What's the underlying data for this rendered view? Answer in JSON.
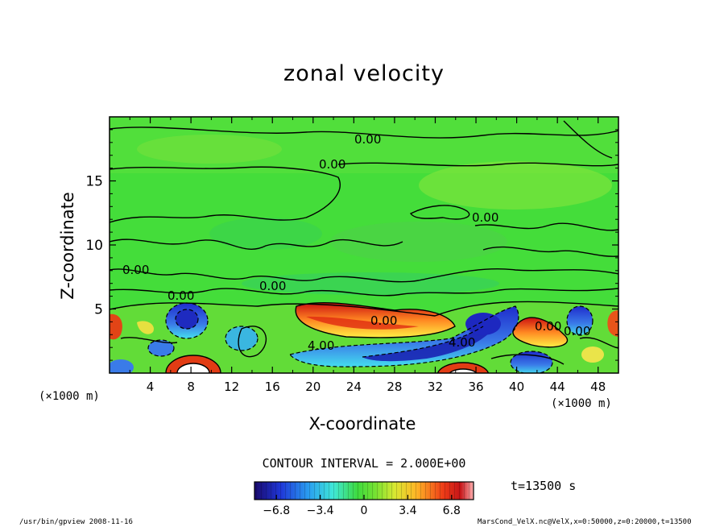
{
  "chart_data": {
    "type": "contour",
    "title": "zonal velocity",
    "xlabel": "X-coordinate",
    "ylabel": "Z-coordinate",
    "x_unit": "(×1000 m)",
    "y_unit": "(×1000 m)",
    "xlim": [
      0,
      50
    ],
    "ylim": [
      0,
      20
    ],
    "x_ticks": [
      4,
      8,
      12,
      16,
      20,
      24,
      28,
      32,
      36,
      40,
      44,
      48
    ],
    "y_ticks": [
      5,
      10,
      15
    ],
    "contour_labels": [
      "0.00",
      "0.00",
      "0.00",
      "0.00",
      "0.00",
      "0.00",
      "0.00",
      "4.00",
      "4.00",
      "0.00",
      "0.00"
    ],
    "colorbar": {
      "min": -8.5,
      "max": 8.5,
      "tick_values": [
        -6.8,
        -3.4,
        0,
        3.4,
        6.8
      ],
      "tick_labels": [
        "−6.8",
        "−3.4",
        "0",
        "3.4",
        "6.8"
      ]
    }
  },
  "contour_interval": "CONTOUR INTERVAL = 2.000E+00",
  "time_label": "t=13500  s",
  "footer_left": "/usr/bin/gpview   2008-11-16",
  "footer_right": "MarsCond_VelX.nc@VelX,x=0:50000,z=0:20000,t=13500"
}
